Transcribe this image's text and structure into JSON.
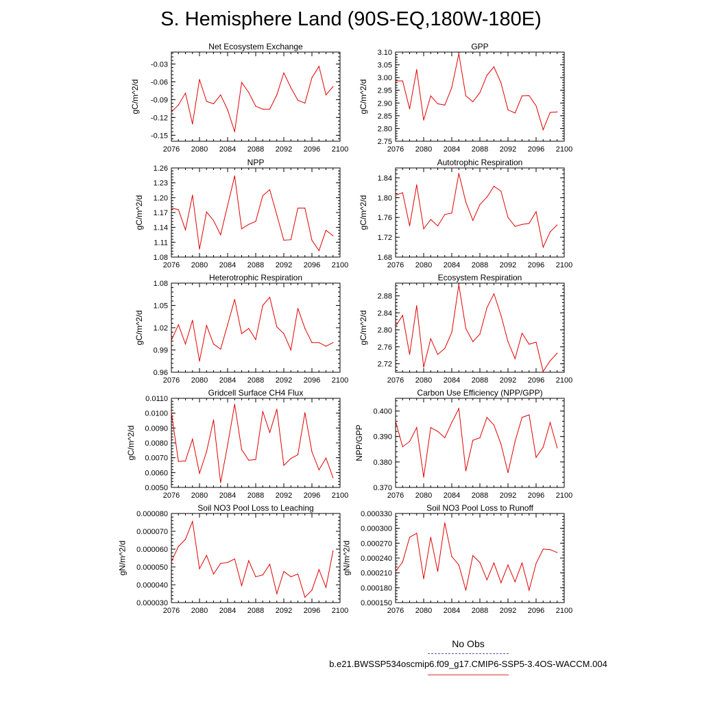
{
  "figure": {
    "title": "S. Hemisphere Land (90S-EQ,180W-180E)",
    "line_color": "#e00000",
    "legend": {
      "obs_label": "No Obs",
      "obs_color": "#5050c0",
      "case_label": "b.e21.BWSSP534oscmip6.f09_g17.CMIP6-SSP5-3.4OS-WACCM.004",
      "case_color": "#e03030"
    }
  },
  "chart_data": [
    {
      "type": "line",
      "title": "Net Ecosystem Exchange",
      "ylabel": "gC/m^2/d",
      "xlim": [
        2076,
        2100
      ],
      "xticks": [
        "2076",
        "2080",
        "2084",
        "2088",
        "2092",
        "2096",
        "2100"
      ],
      "ylim": [
        -0.16,
        -0.01
      ],
      "yticks": [
        "-0.03",
        "-0.06",
        "-0.09",
        "-0.12",
        "-0.15"
      ],
      "x": [
        2076,
        2077,
        2078,
        2079,
        2080,
        2081,
        2082,
        2083,
        2084,
        2085,
        2086,
        2087,
        2088,
        2089,
        2090,
        2091,
        2092,
        2093,
        2094,
        2095,
        2096,
        2097,
        2098,
        2099
      ],
      "values": [
        -0.111,
        -0.099,
        -0.079,
        -0.131,
        -0.056,
        -0.093,
        -0.097,
        -0.082,
        -0.107,
        -0.144,
        -0.061,
        -0.078,
        -0.101,
        -0.106,
        -0.106,
        -0.082,
        -0.045,
        -0.07,
        -0.091,
        -0.096,
        -0.053,
        -0.034,
        -0.082,
        -0.068
      ]
    },
    {
      "type": "line",
      "title": "GPP",
      "ylabel": "gC/m^2/d",
      "xlim": [
        2076,
        2100
      ],
      "xticks": [
        "2076",
        "2080",
        "2084",
        "2088",
        "2092",
        "2096",
        "2100"
      ],
      "ylim": [
        2.75,
        3.1
      ],
      "yticks": [
        "3.10",
        "3.05",
        "3.00",
        "2.95",
        "2.90",
        "2.85",
        "2.80",
        "2.75"
      ],
      "x": [
        2076,
        2077,
        2078,
        2079,
        2080,
        2081,
        2082,
        2083,
        2084,
        2085,
        2086,
        2087,
        2088,
        2089,
        2090,
        2091,
        2092,
        2093,
        2094,
        2095,
        2096,
        2097,
        2098,
        2099
      ],
      "values": [
        2.987,
        2.987,
        2.877,
        3.031,
        2.833,
        2.928,
        2.897,
        2.892,
        2.961,
        3.093,
        2.928,
        2.905,
        2.941,
        3.009,
        3.042,
        2.979,
        2.873,
        2.861,
        2.928,
        2.929,
        2.889,
        2.795,
        2.863,
        2.865
      ]
    },
    {
      "type": "line",
      "title": "NPP",
      "ylabel": "gC/m^2/d",
      "xlim": [
        2076,
        2100
      ],
      "xticks": [
        "2076",
        "2080",
        "2084",
        "2088",
        "2092",
        "2096",
        "2100"
      ],
      "ylim": [
        1.08,
        1.26
      ],
      "yticks": [
        "1.26",
        "1.23",
        "1.20",
        "1.17",
        "1.14",
        "1.11",
        "1.08"
      ],
      "x": [
        2076,
        2077,
        2078,
        2079,
        2080,
        2081,
        2082,
        2083,
        2084,
        2085,
        2086,
        2087,
        2088,
        2089,
        2090,
        2091,
        2092,
        2093,
        2094,
        2095,
        2096,
        2097,
        2098,
        2099
      ],
      "values": [
        1.179,
        1.176,
        1.135,
        1.205,
        1.096,
        1.171,
        1.154,
        1.125,
        1.184,
        1.244,
        1.137,
        1.146,
        1.152,
        1.204,
        1.216,
        1.165,
        1.114,
        1.115,
        1.179,
        1.179,
        1.114,
        1.093,
        1.134,
        1.123
      ]
    },
    {
      "type": "line",
      "title": "Autotrophic Respiration",
      "ylabel": "gC/m^2/d",
      "xlim": [
        2076,
        2100
      ],
      "xticks": [
        "2076",
        "2080",
        "2084",
        "2088",
        "2092",
        "2096",
        "2100"
      ],
      "ylim": [
        1.68,
        1.86
      ],
      "yticks": [
        "1.84",
        "1.80",
        "1.76",
        "1.72",
        "1.68"
      ],
      "x": [
        2076,
        2077,
        2078,
        2079,
        2080,
        2081,
        2082,
        2083,
        2084,
        2085,
        2086,
        2087,
        2088,
        2089,
        2090,
        2091,
        2092,
        2093,
        2094,
        2095,
        2096,
        2097,
        2098,
        2099
      ],
      "values": [
        1.805,
        1.81,
        1.743,
        1.826,
        1.737,
        1.756,
        1.743,
        1.766,
        1.769,
        1.849,
        1.791,
        1.754,
        1.786,
        1.801,
        1.823,
        1.813,
        1.76,
        1.742,
        1.746,
        1.748,
        1.772,
        1.7,
        1.731,
        1.745
      ]
    },
    {
      "type": "line",
      "title": "Heterotrophic Respiration",
      "ylabel": "gC/m^2/d",
      "xlim": [
        2076,
        2100
      ],
      "xticks": [
        "2076",
        "2080",
        "2084",
        "2088",
        "2092",
        "2096",
        "2100"
      ],
      "ylim": [
        0.96,
        1.08
      ],
      "yticks": [
        "1.08",
        "1.05",
        "1.02",
        "0.99",
        "0.96"
      ],
      "x": [
        2076,
        2077,
        2078,
        2079,
        2080,
        2081,
        2082,
        2083,
        2084,
        2085,
        2086,
        2087,
        2088,
        2089,
        2090,
        2091,
        2092,
        2093,
        2094,
        2095,
        2096,
        2097,
        2098,
        2099
      ],
      "values": [
        1.003,
        1.024,
        0.998,
        1.03,
        0.975,
        1.023,
        0.998,
        0.991,
        1.024,
        1.058,
        1.012,
        1.019,
        1.004,
        1.05,
        1.061,
        1.021,
        1.012,
        0.99,
        1.046,
        1.019,
        1.0,
        1.0,
        0.995,
        1.0
      ]
    },
    {
      "type": "line",
      "title": "Ecosystem Respiration",
      "ylabel": "gC/m^2/d",
      "xlim": [
        2076,
        2100
      ],
      "xticks": [
        "2076",
        "2080",
        "2084",
        "2088",
        "2092",
        "2096",
        "2100"
      ],
      "ylim": [
        2.7,
        2.91
      ],
      "yticks": [
        "2.88",
        "2.84",
        "2.80",
        "2.76",
        "2.72"
      ],
      "x": [
        2076,
        2077,
        2078,
        2079,
        2080,
        2081,
        2082,
        2083,
        2084,
        2085,
        2086,
        2087,
        2088,
        2089,
        2090,
        2091,
        2092,
        2093,
        2094,
        2095,
        2096,
        2097,
        2098,
        2099
      ],
      "values": [
        2.808,
        2.834,
        2.742,
        2.857,
        2.712,
        2.779,
        2.742,
        2.756,
        2.794,
        2.906,
        2.803,
        2.772,
        2.79,
        2.852,
        2.885,
        2.834,
        2.772,
        2.732,
        2.792,
        2.766,
        2.771,
        2.702,
        2.727,
        2.745
      ]
    },
    {
      "type": "line",
      "title": "Gridcell Surface CH4 Flux",
      "ylabel": "gC/m^2/d",
      "xlim": [
        2076,
        2100
      ],
      "xticks": [
        "2076",
        "2080",
        "2084",
        "2088",
        "2092",
        "2096",
        "2100"
      ],
      "ylim": [
        0.005,
        0.011
      ],
      "yticks": [
        "0.0110",
        "0.0100",
        "0.0090",
        "0.0080",
        "0.0070",
        "0.0060",
        "0.0050"
      ],
      "x": [
        2076,
        2077,
        2078,
        2079,
        2080,
        2081,
        2082,
        2083,
        2084,
        2085,
        2086,
        2087,
        2088,
        2089,
        2090,
        2091,
        2092,
        2093,
        2094,
        2095,
        2096,
        2097,
        2098,
        2099
      ],
      "values": [
        0.01005,
        0.00675,
        0.00678,
        0.00825,
        0.00595,
        0.0074,
        0.00955,
        0.00533,
        0.00785,
        0.0106,
        0.00755,
        0.00683,
        0.00688,
        0.01012,
        0.0087,
        0.01027,
        0.00648,
        0.00695,
        0.0072,
        0.01003,
        0.0074,
        0.00618,
        0.00698,
        0.00565
      ]
    },
    {
      "type": "line",
      "title": "Carbon Use Efficiency (NPP/GPP)",
      "ylabel": "NPP/GPP",
      "xlim": [
        2076,
        2100
      ],
      "xticks": [
        "2076",
        "2080",
        "2084",
        "2088",
        "2092",
        "2096",
        "2100"
      ],
      "ylim": [
        0.37,
        0.405
      ],
      "yticks": [
        "0.400",
        "0.390",
        "0.380",
        "0.370"
      ],
      "x": [
        2076,
        2077,
        2078,
        2079,
        2080,
        2081,
        2082,
        2083,
        2084,
        2085,
        2086,
        2087,
        2088,
        2089,
        2090,
        2091,
        2092,
        2093,
        2094,
        2095,
        2096,
        2097,
        2098,
        2099
      ],
      "values": [
        0.396,
        0.386,
        0.388,
        0.3935,
        0.374,
        0.3935,
        0.392,
        0.3895,
        0.3955,
        0.401,
        0.3765,
        0.3885,
        0.3895,
        0.3975,
        0.3945,
        0.387,
        0.3758,
        0.388,
        0.3975,
        0.3985,
        0.3818,
        0.3858,
        0.3955,
        0.3855
      ]
    },
    {
      "type": "line",
      "title": "Soil NO3 Pool Loss to Leaching",
      "ylabel": "gN/m^2/d",
      "xlim": [
        2076,
        2100
      ],
      "xticks": [
        "2076",
        "2080",
        "2084",
        "2088",
        "2092",
        "2096",
        "2100"
      ],
      "ylim": [
        3e-05,
        8e-05
      ],
      "yticks": [
        "0.000080",
        "0.000070",
        "0.000060",
        "0.000050",
        "0.000040",
        "0.000030"
      ],
      "x": [
        2076,
        2077,
        2078,
        2079,
        2080,
        2081,
        2082,
        2083,
        2084,
        2085,
        2086,
        2087,
        2088,
        2089,
        2090,
        2091,
        2092,
        2093,
        2094,
        2095,
        2096,
        2097,
        2098,
        2099
      ],
      "values": [
        5.3e-05,
        6.15e-05,
        6.55e-05,
        7.55e-05,
        4.9e-05,
        5.65e-05,
        4.6e-05,
        5.2e-05,
        5.25e-05,
        5.45e-05,
        3.95e-05,
        5.35e-05,
        4.45e-05,
        4.55e-05,
        5.15e-05,
        3.5e-05,
        4.75e-05,
        4.45e-05,
        4.6e-05,
        3.3e-05,
        3.7e-05,
        4.85e-05,
        3.85e-05,
        5.9e-05
      ]
    },
    {
      "type": "line",
      "title": "Soil NO3 Pool Loss to Runoff",
      "ylabel": "gN/m^2/d",
      "xlim": [
        2076,
        2100
      ],
      "xticks": [
        "2076",
        "2080",
        "2084",
        "2088",
        "2092",
        "2096",
        "2100"
      ],
      "ylim": [
        0.00015,
        0.00033
      ],
      "yticks": [
        "0.000330",
        "0.000300",
        "0.000270",
        "0.000240",
        "0.000210",
        "0.000180",
        "0.000150"
      ],
      "x": [
        2076,
        2077,
        2078,
        2079,
        2080,
        2081,
        2082,
        2083,
        2084,
        2085,
        2086,
        2087,
        2088,
        2089,
        2090,
        2091,
        2092,
        2093,
        2094,
        2095,
        2096,
        2097,
        2098,
        2099
      ],
      "values": [
        0.000213,
        0.000232,
        0.000282,
        0.00029,
        0.000198,
        0.000282,
        0.000213,
        0.000311,
        0.000243,
        0.000226,
        0.000175,
        0.000245,
        0.000231,
        0.000196,
        0.00023,
        0.00019,
        0.000226,
        0.000192,
        0.00023,
        0.000175,
        0.000229,
        0.000258,
        0.000257,
        0.000251
      ]
    }
  ]
}
